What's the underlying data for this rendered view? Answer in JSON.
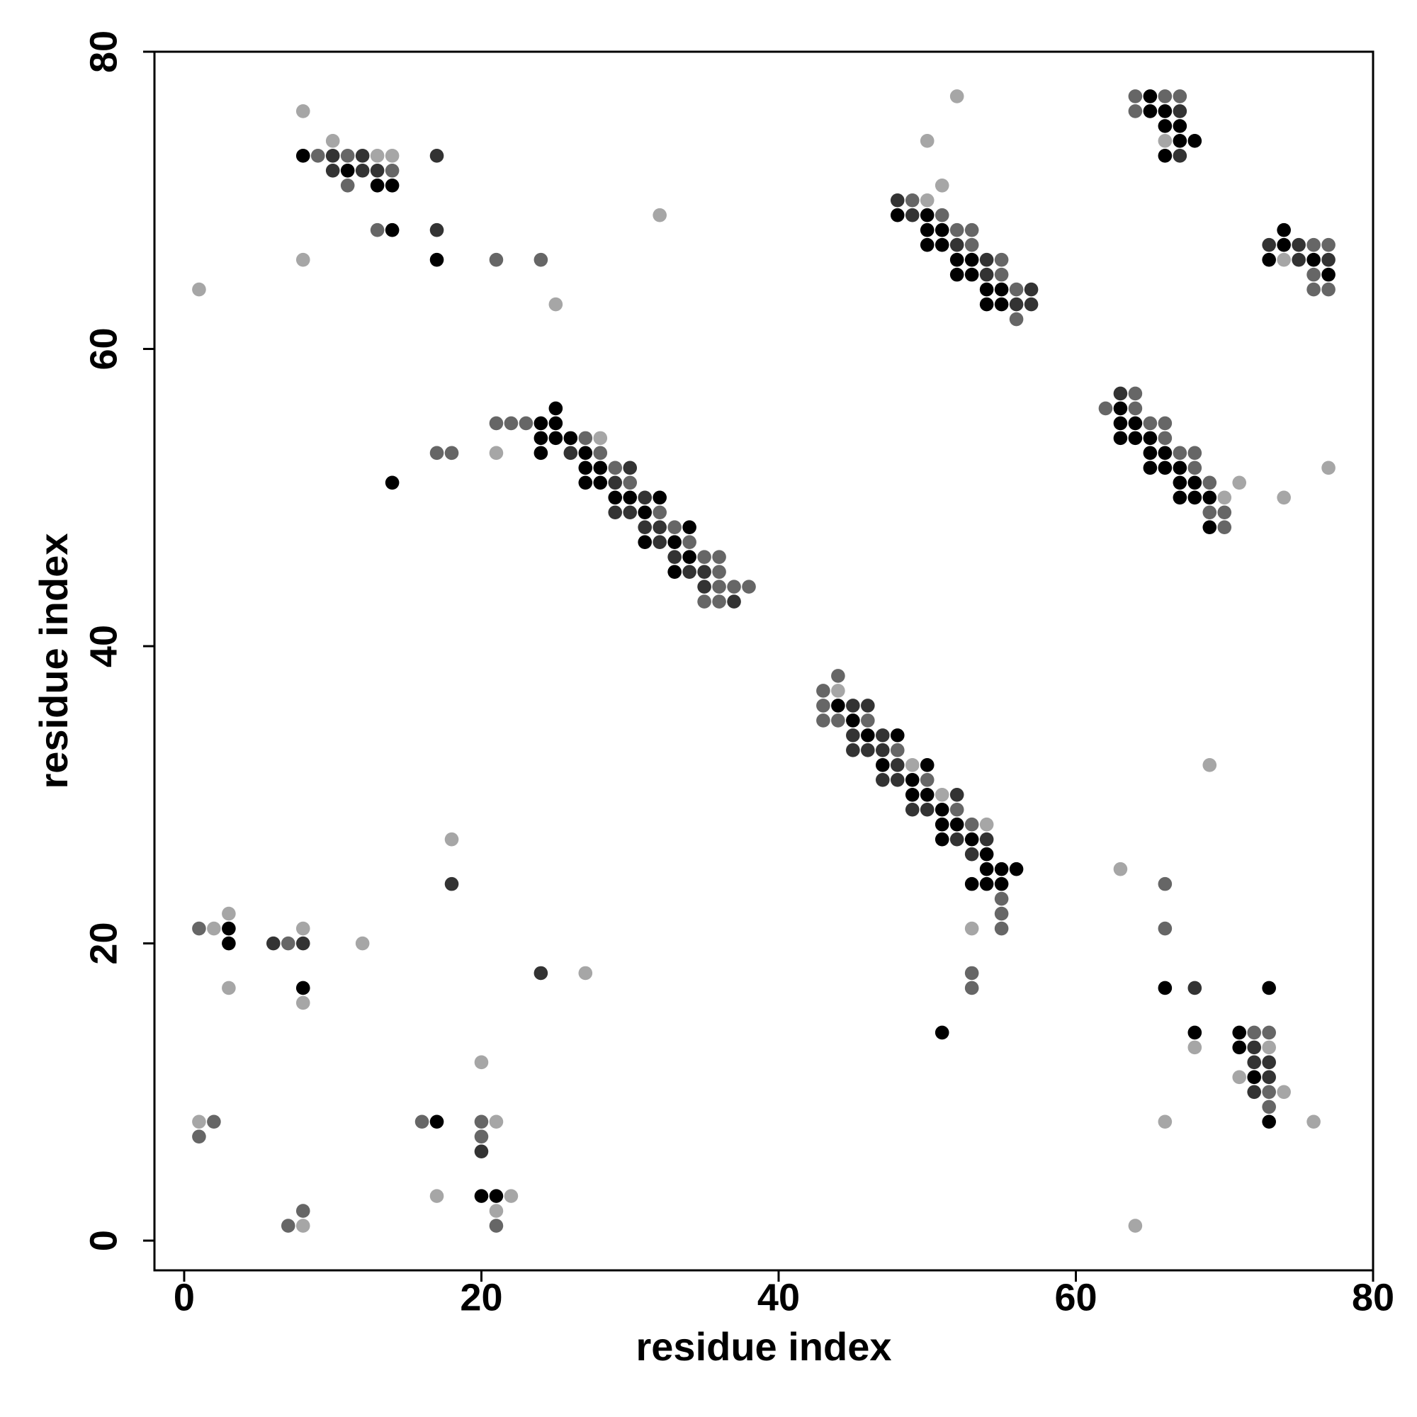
{
  "chart_data": {
    "type": "scatter",
    "x_label": "residue index",
    "y_label": "residue index",
    "xlim": [
      -2,
      80
    ],
    "ylim": [
      -2,
      80
    ],
    "xticks": [
      0,
      20,
      40,
      60,
      80
    ],
    "yticks": [
      0,
      20,
      40,
      60,
      80
    ],
    "grid": false,
    "series": [
      {
        "color": "#000000",
        "x": [
          8,
          11,
          13,
          14,
          14,
          17,
          25,
          24,
          25,
          24,
          25,
          26,
          24,
          27,
          27,
          28,
          14,
          27,
          28,
          29,
          30,
          32,
          31,
          34,
          31,
          33,
          34,
          33,
          44,
          45,
          46,
          48,
          47,
          50,
          49,
          49,
          50,
          51,
          51,
          52,
          51,
          53,
          54,
          54,
          55,
          56,
          53,
          54,
          55,
          51,
          48,
          50,
          50,
          51,
          50,
          51,
          52,
          53,
          52,
          53,
          54,
          55,
          54,
          55,
          65,
          65,
          66,
          66,
          67,
          67,
          68,
          66,
          74,
          74,
          73,
          76,
          77,
          63,
          63,
          64,
          63,
          64,
          65,
          65,
          66,
          65,
          66,
          67,
          67,
          68,
          67,
          68,
          69,
          69,
          66,
          73,
          68,
          71,
          71,
          72,
          73,
          3,
          3,
          8,
          17,
          20,
          21
        ],
        "values": [
          73,
          72,
          71,
          71,
          68,
          66,
          56,
          55,
          55,
          54,
          54,
          54,
          53,
          53,
          52,
          52,
          51,
          51,
          51,
          50,
          50,
          50,
          49,
          48,
          47,
          47,
          46,
          45,
          36,
          35,
          34,
          34,
          32,
          32,
          31,
          30,
          30,
          29,
          28,
          28,
          27,
          27,
          26,
          25,
          25,
          25,
          24,
          24,
          24,
          14,
          69,
          69,
          68,
          68,
          67,
          67,
          66,
          66,
          65,
          65,
          64,
          64,
          63,
          63,
          77,
          76,
          76,
          75,
          75,
          74,
          74,
          73,
          68,
          67,
          66,
          66,
          65,
          56,
          55,
          55,
          54,
          54,
          54,
          53,
          53,
          52,
          52,
          52,
          51,
          51,
          50,
          50,
          50,
          48,
          17,
          17,
          14,
          14,
          13,
          11,
          8,
          21,
          20,
          17,
          8,
          3,
          3
        ]
      },
      {
        "color": "#333333",
        "x": [
          10,
          12,
          17,
          10,
          12,
          13,
          17,
          26,
          30,
          29,
          31,
          29,
          30,
          31,
          32,
          32,
          33,
          34,
          35,
          35,
          37,
          45,
          46,
          45,
          47,
          45,
          46,
          47,
          48,
          47,
          48,
          52,
          49,
          50,
          52,
          54,
          53,
          48,
          49,
          52,
          54,
          54,
          57,
          56,
          57,
          67,
          67,
          73,
          75,
          75,
          77,
          63,
          68,
          72,
          72,
          73,
          73,
          72,
          6,
          8,
          18,
          24,
          20
        ],
        "values": [
          73,
          73,
          73,
          72,
          72,
          72,
          68,
          53,
          52,
          51,
          50,
          49,
          49,
          48,
          48,
          47,
          46,
          45,
          45,
          44,
          43,
          36,
          36,
          34,
          34,
          33,
          33,
          33,
          32,
          31,
          31,
          30,
          29,
          29,
          27,
          27,
          26,
          70,
          69,
          67,
          66,
          65,
          64,
          63,
          63,
          76,
          73,
          67,
          67,
          66,
          66,
          57,
          17,
          13,
          12,
          12,
          11,
          10,
          20,
          20,
          24,
          18,
          6
        ]
      },
      {
        "color": "#666666",
        "x": [
          9,
          11,
          14,
          11,
          13,
          21,
          24,
          21,
          22,
          23,
          27,
          17,
          18,
          28,
          29,
          30,
          32,
          33,
          34,
          35,
          36,
          36,
          36,
          37,
          38,
          35,
          36,
          44,
          43,
          43,
          43,
          44,
          46,
          48,
          50,
          52,
          53,
          55,
          55,
          55,
          53,
          53,
          49,
          51,
          52,
          53,
          53,
          55,
          55,
          56,
          56,
          64,
          66,
          67,
          64,
          76,
          77,
          76,
          76,
          77,
          64,
          62,
          64,
          65,
          66,
          66,
          67,
          68,
          68,
          69,
          69,
          70,
          70,
          66,
          66,
          72,
          73,
          73,
          73,
          1,
          7,
          2,
          16,
          20,
          1,
          20,
          8,
          7,
          21
        ],
        "values": [
          73,
          73,
          72,
          71,
          68,
          66,
          66,
          55,
          55,
          55,
          54,
          53,
          53,
          53,
          52,
          51,
          49,
          48,
          47,
          46,
          46,
          45,
          44,
          44,
          44,
          43,
          43,
          38,
          37,
          36,
          35,
          35,
          35,
          33,
          31,
          29,
          28,
          23,
          22,
          21,
          18,
          17,
          70,
          69,
          68,
          68,
          67,
          66,
          65,
          64,
          62,
          77,
          77,
          77,
          76,
          67,
          67,
          65,
          64,
          64,
          57,
          56,
          56,
          55,
          55,
          54,
          53,
          53,
          52,
          51,
          49,
          49,
          48,
          24,
          21,
          14,
          14,
          10,
          9,
          21,
          20,
          8,
          8,
          8,
          7,
          7,
          2,
          1,
          1
        ]
      },
      {
        "color": "#a6a6a6",
        "x": [
          8,
          10,
          13,
          14,
          8,
          1,
          25,
          32,
          28,
          21,
          44,
          49,
          51,
          54,
          53,
          51,
          50,
          50,
          52,
          66,
          74,
          70,
          77,
          71,
          74,
          69,
          63,
          68,
          73,
          71,
          74,
          76,
          66,
          64,
          3,
          2,
          8,
          12,
          3,
          8,
          18,
          27,
          20,
          1,
          21,
          17,
          22,
          21,
          8
        ],
        "values": [
          76,
          74,
          73,
          73,
          66,
          64,
          63,
          69,
          54,
          53,
          37,
          32,
          30,
          28,
          21,
          71,
          70,
          74,
          77,
          74,
          66,
          50,
          52,
          51,
          50,
          32,
          25,
          13,
          13,
          11,
          10,
          8,
          8,
          1,
          22,
          21,
          21,
          20,
          17,
          16,
          27,
          18,
          12,
          8,
          8,
          3,
          3,
          2,
          1
        ]
      }
    ]
  }
}
